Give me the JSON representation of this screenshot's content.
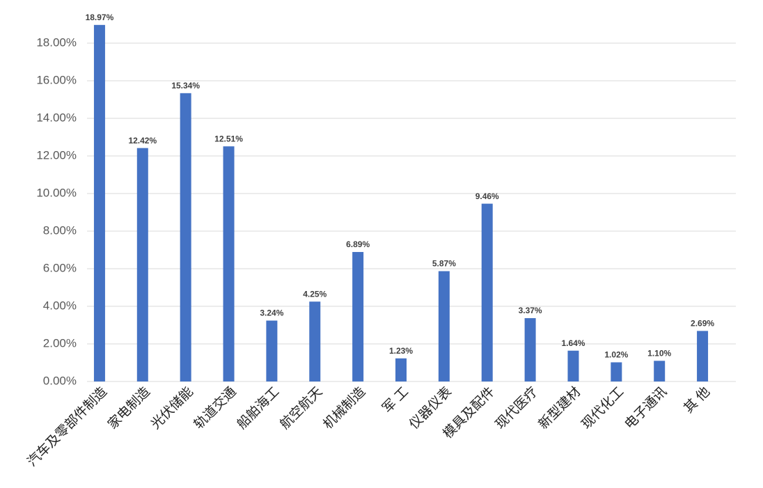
{
  "chart_data": {
    "type": "bar",
    "categories": [
      "汽车及零部件制造",
      "家电制造",
      "光伏储能",
      "轨道交通",
      "船舶海工",
      "航空航天",
      "机械制造",
      "军 工",
      "仪器仪表",
      "模具及配件",
      "现代医疗",
      "新型建材",
      "现代化工",
      "电子通讯",
      "其 他"
    ],
    "values": [
      18.97,
      12.42,
      15.34,
      12.51,
      3.24,
      4.25,
      6.89,
      1.23,
      5.87,
      9.46,
      3.37,
      1.64,
      1.02,
      1.1,
      2.69
    ],
    "value_labels": [
      "18.97%",
      "12.42%",
      "15.34%",
      "12.51%",
      "3.24%",
      "4.25%",
      "6.89%",
      "1.23%",
      "5.87%",
      "9.46%",
      "3.37%",
      "1.64%",
      "1.02%",
      "1.10%",
      "2.69%"
    ],
    "color": "#4472c4",
    "ylim": [
      0,
      20
    ],
    "yticks": [
      {
        "value": 0,
        "label": "0.00%"
      },
      {
        "value": 2,
        "label": "2.00%"
      },
      {
        "value": 4,
        "label": "4.00%"
      },
      {
        "value": 6,
        "label": "6.00%"
      },
      {
        "value": 8,
        "label": "8.00%"
      },
      {
        "value": 10,
        "label": "10.00%"
      },
      {
        "value": 12,
        "label": "12.00%"
      },
      {
        "value": 14,
        "label": "14.00%"
      },
      {
        "value": 16,
        "label": "16.00%"
      },
      {
        "value": 18,
        "label": "18.00%"
      }
    ],
    "grid": true
  }
}
